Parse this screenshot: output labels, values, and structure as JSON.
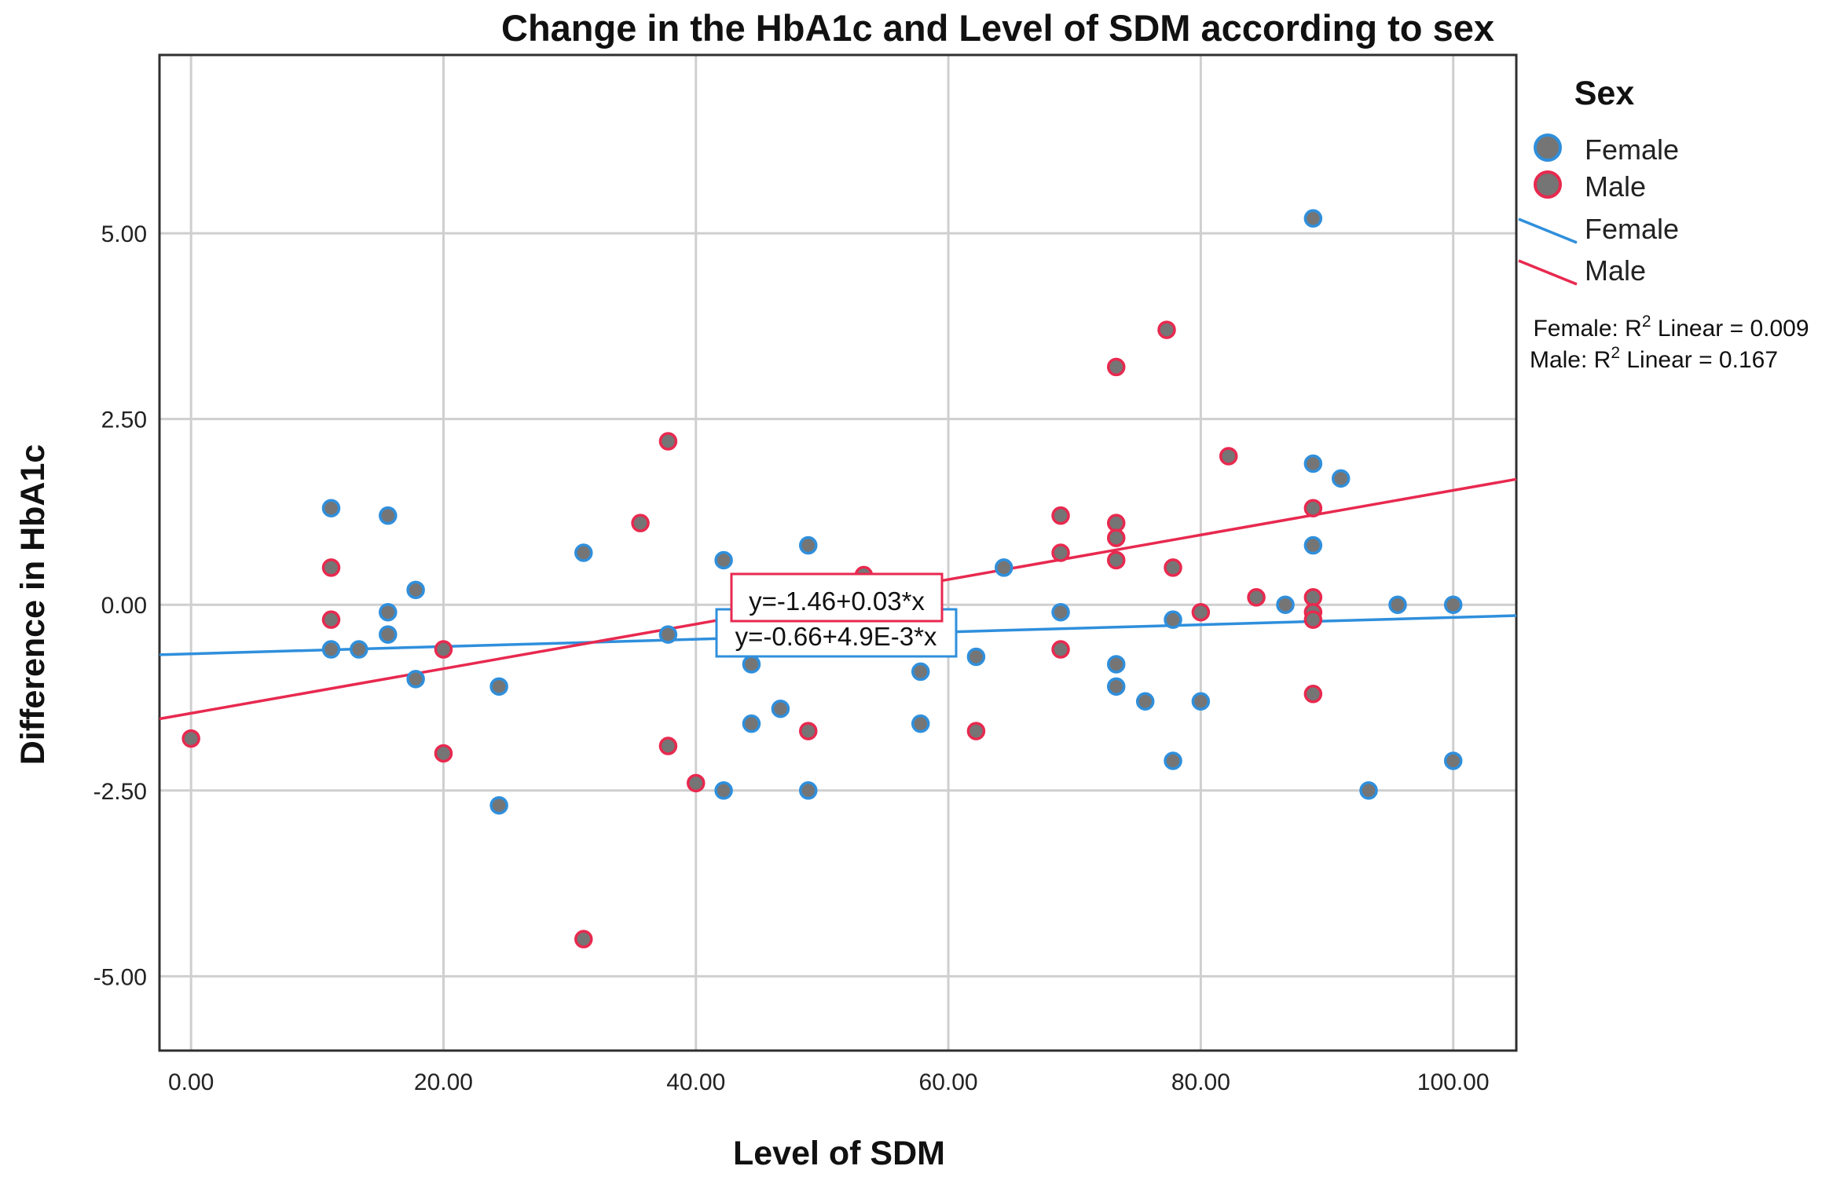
{
  "chart_data": {
    "type": "scatter",
    "title": "Change in the HbA1c and Level of SDM according to sex",
    "xlabel": "Level of SDM",
    "ylabel": "Difference in HbA1c",
    "xlim": [
      -2.5,
      105
    ],
    "ylim": [
      -6,
      7.4
    ],
    "x_ticks": [
      0,
      20,
      40,
      60,
      80,
      100
    ],
    "x_tick_labels": [
      "0.00",
      "20.00",
      "40.00",
      "60.00",
      "80.00",
      "100.00"
    ],
    "y_ticks": [
      5,
      2.5,
      0,
      -2.5,
      -5
    ],
    "y_tick_labels": [
      "5.00",
      "2.50",
      "0.00",
      "-2.50",
      "-5.00"
    ],
    "grid": true,
    "legend": {
      "title": "Sex",
      "position": "right",
      "entries": [
        {
          "label": "Female",
          "kind": "point",
          "series": "Female"
        },
        {
          "label": "Male",
          "kind": "point",
          "series": "Male"
        },
        {
          "label": "Female",
          "kind": "line",
          "series": "Female"
        },
        {
          "label": "Male",
          "kind": "line",
          "series": "Male"
        }
      ]
    },
    "r2_labels": [
      {
        "prefix": "Female: R",
        "sup": "2",
        "suffix": " Linear = 0.009"
      },
      {
        "prefix": "Male: R",
        "sup": "2",
        "suffix": " Linear = 0.167"
      }
    ],
    "series": [
      {
        "name": "Female",
        "color": "#2f8fdc",
        "fill": "#757575",
        "fit": {
          "intercept": -0.66,
          "slope": 0.0049,
          "equation": "y=-0.66+4.9E-3*x"
        },
        "points": [
          [
            11.1,
            1.3
          ],
          [
            11.1,
            -0.6
          ],
          [
            13.3,
            -0.6
          ],
          [
            15.6,
            1.2
          ],
          [
            15.6,
            -0.1
          ],
          [
            15.6,
            -0.4
          ],
          [
            17.8,
            0.2
          ],
          [
            17.8,
            -1.0
          ],
          [
            24.4,
            -1.1
          ],
          [
            24.4,
            -2.7
          ],
          [
            31.1,
            0.7
          ],
          [
            37.8,
            -0.4
          ],
          [
            42.2,
            0.6
          ],
          [
            42.2,
            -2.5
          ],
          [
            44.4,
            -0.8
          ],
          [
            44.4,
            -1.6
          ],
          [
            46.7,
            -1.4
          ],
          [
            48.9,
            0.8
          ],
          [
            48.9,
            -2.5
          ],
          [
            57.8,
            -0.9
          ],
          [
            57.8,
            -1.6
          ],
          [
            62.2,
            -0.7
          ],
          [
            64.4,
            0.5
          ],
          [
            68.9,
            -0.1
          ],
          [
            73.3,
            -0.8
          ],
          [
            73.3,
            -1.1
          ],
          [
            75.6,
            -1.3
          ],
          [
            77.8,
            -0.2
          ],
          [
            77.8,
            -2.1
          ],
          [
            80.0,
            -1.3
          ],
          [
            86.7,
            0.0
          ],
          [
            88.9,
            5.2
          ],
          [
            88.9,
            1.9
          ],
          [
            88.9,
            0.8
          ],
          [
            91.1,
            1.7
          ],
          [
            93.3,
            -2.5
          ],
          [
            95.6,
            0.0
          ],
          [
            100.0,
            0.0
          ],
          [
            100.0,
            -2.1
          ]
        ]
      },
      {
        "name": "Male",
        "color": "#e8294f",
        "fill": "#757575",
        "fit": {
          "intercept": -1.46,
          "slope": 0.03,
          "equation": "y=-1.46+0.03*x"
        },
        "points": [
          [
            0.0,
            -1.8
          ],
          [
            11.1,
            0.5
          ],
          [
            11.1,
            -0.2
          ],
          [
            20.0,
            -0.6
          ],
          [
            20.0,
            -2.0
          ],
          [
            31.1,
            -4.5
          ],
          [
            35.6,
            1.1
          ],
          [
            37.8,
            2.2
          ],
          [
            37.8,
            -1.9
          ],
          [
            40.0,
            -2.4
          ],
          [
            48.9,
            -1.7
          ],
          [
            53.3,
            0.4
          ],
          [
            62.2,
            -1.7
          ],
          [
            68.9,
            1.2
          ],
          [
            68.9,
            0.7
          ],
          [
            68.9,
            -0.6
          ],
          [
            73.3,
            3.2
          ],
          [
            73.3,
            1.1
          ],
          [
            73.3,
            0.9
          ],
          [
            73.3,
            0.6
          ],
          [
            77.3,
            3.7
          ],
          [
            77.8,
            0.5
          ],
          [
            80.0,
            -0.1
          ],
          [
            82.2,
            2.0
          ],
          [
            84.4,
            0.1
          ],
          [
            88.9,
            1.3
          ],
          [
            88.9,
            0.1
          ],
          [
            88.9,
            -0.1
          ],
          [
            88.9,
            -0.2
          ],
          [
            88.9,
            -1.2
          ]
        ]
      }
    ]
  }
}
